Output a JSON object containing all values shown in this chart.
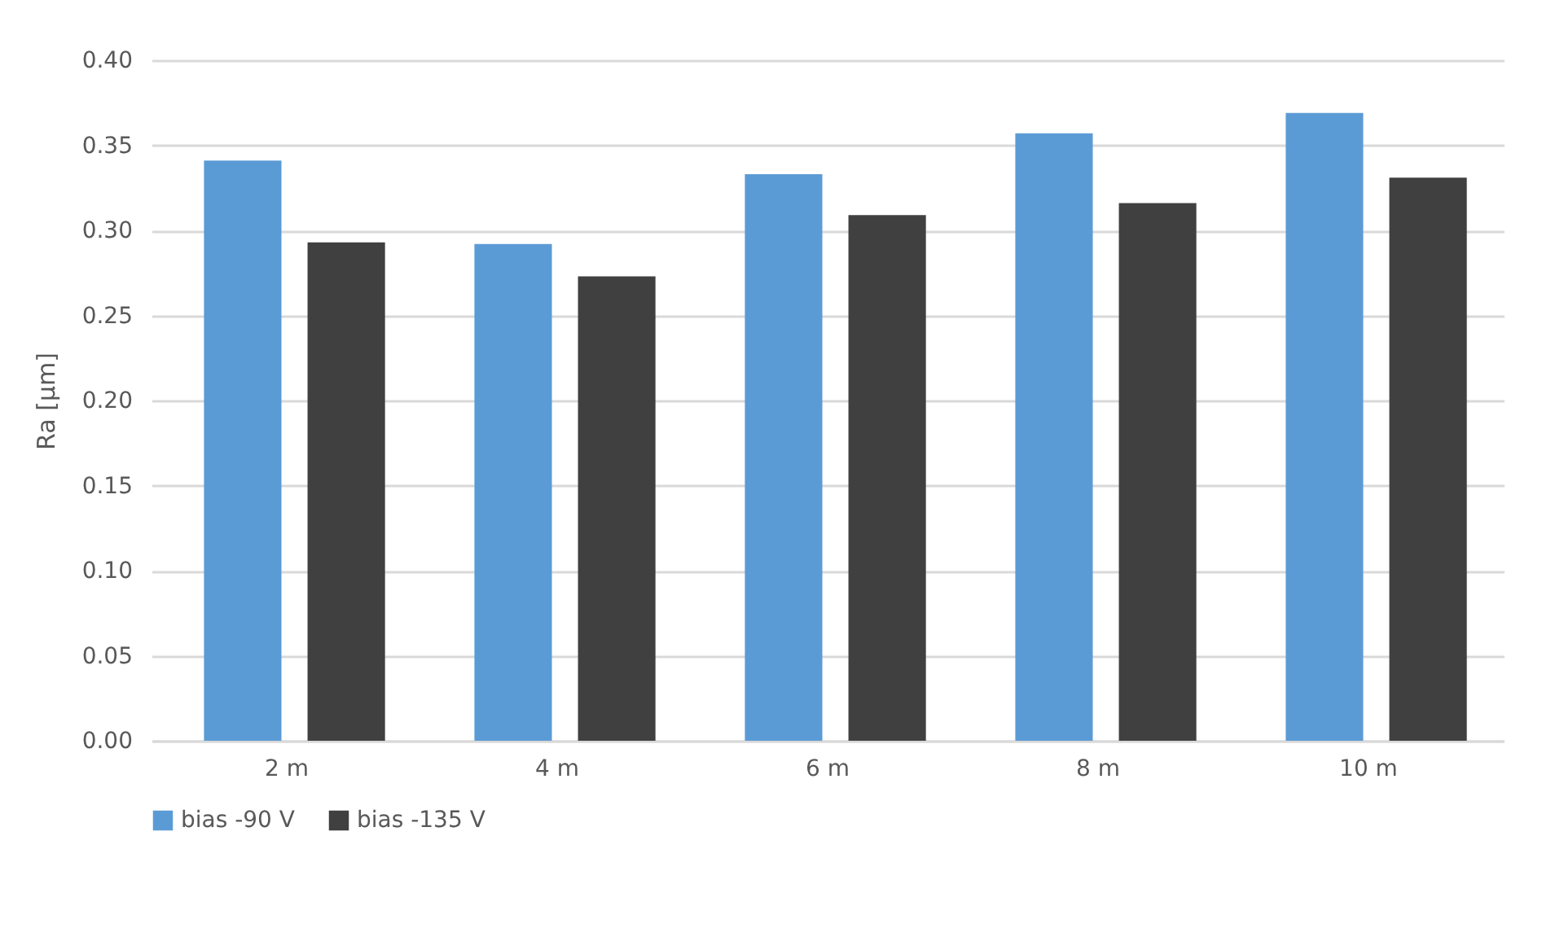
{
  "chart_data": {
    "type": "bar",
    "ylabel": "Ra [µm]",
    "categories": [
      "2 m",
      "4 m",
      "6 m",
      "8 m",
      "10 m"
    ],
    "series": [
      {
        "name": "bias -90 V",
        "color": "#5b9bd5",
        "values": [
          0.341,
          0.292,
          0.333,
          0.357,
          0.369
        ]
      },
      {
        "name": "bias -135 V",
        "color": "#404040",
        "values": [
          0.293,
          0.273,
          0.309,
          0.316,
          0.331
        ]
      }
    ],
    "ylim": [
      0,
      0.4
    ],
    "yticks": [
      {
        "value": 0,
        "label": "0.00"
      },
      {
        "value": 0.05,
        "label": "0.05"
      },
      {
        "value": 0.1,
        "label": "0.10"
      },
      {
        "value": 0.15,
        "label": "0.15"
      },
      {
        "value": 0.2,
        "label": "0.20"
      },
      {
        "value": 0.25,
        "label": "0.25"
      },
      {
        "value": 0.3,
        "label": "0.30"
      },
      {
        "value": 0.35,
        "label": "0.35"
      },
      {
        "value": 0.4,
        "label": "0.40"
      }
    ],
    "grid": "y",
    "legend": "bottom"
  }
}
